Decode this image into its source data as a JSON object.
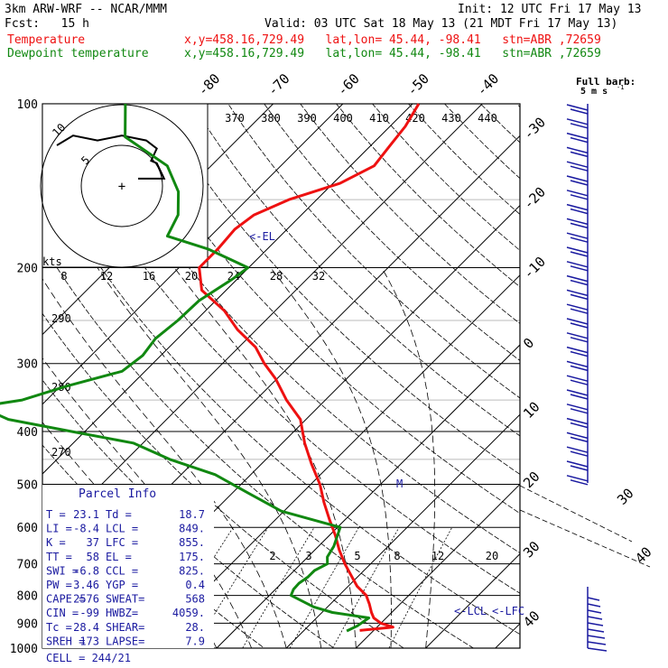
{
  "header": {
    "model_line": "3km ARW-WRF -- NCAR/MMM",
    "init_line": "Init: 12 UTC Fri 17 May 13",
    "fcst_line": "Fcst:   15 h",
    "valid_line": "Valid: 03 UTC Sat 18 May 13 (21 MDT Fri 17 May 13)",
    "temp_label": "Temperature",
    "temp_info": "x,y=458.16,729.49   lat,lon= 45.44, -98.41   stn=ABR ,72659",
    "dew_label": "Dewpoint temperature",
    "dew_info": "x,y=458.16,729.49   lat,lon= 45.44, -98.41   stn=ABR ,72659"
  },
  "colors": {
    "temperature": "#ee1111",
    "dewpoint": "#118811",
    "text": "#000000",
    "accent": "#1a1aa0",
    "wind_barb": "#1a1aa0"
  },
  "wind_key": {
    "line1": "Full barb:",
    "line2": "5 m s",
    "exp": "-1"
  },
  "hodograph": {
    "kts_label": "kts",
    "ring_labels": [
      "5",
      "10"
    ],
    "speed_ticks": [
      "8",
      "12",
      "16",
      "20",
      "24",
      "28",
      "32"
    ],
    "path_u": [
      -8,
      -6,
      -3,
      0,
      3,
      4.3,
      3.6,
      4.3,
      5.2,
      4.2,
      2
    ],
    "path_v": [
      5,
      6.2,
      5.6,
      6.2,
      5.6,
      4.6,
      3.1,
      2.8,
      0.9,
      0.9,
      0.9
    ]
  },
  "theta_labels": [
    "370",
    "380",
    "390",
    "400",
    "410",
    "420",
    "430",
    "440"
  ],
  "theta_left_labels": [
    "290",
    "280",
    "270"
  ],
  "mixing_labels": [
    "2",
    "3",
    "5",
    "8",
    "12",
    "20"
  ],
  "markers": {
    "el": "<-EL",
    "lcl": "<-LCL",
    "lfc": "<-LFC",
    "m": "M"
  },
  "parcel_info": {
    "title": "Parcel Info",
    "rows": [
      [
        "T  =",
        "23.1",
        "Td =",
        "18.7"
      ],
      [
        "LI =",
        "-8.4",
        "LCL =",
        "849."
      ],
      [
        "K  =",
        "37",
        "LFC =",
        "855."
      ],
      [
        "TT =",
        "58",
        "EL =",
        "175."
      ],
      [
        "SWI =",
        "-6.8",
        "CCL =",
        "825."
      ],
      [
        "PW =",
        "3.46",
        "YGP =",
        "0.4"
      ],
      [
        "CAPE =",
        "2576",
        "SWEAT=",
        "568"
      ],
      [
        "CIN =",
        "-99",
        "HWBZ=",
        "4059."
      ],
      [
        "Tc =",
        "28.4",
        "SHEAR=",
        "28."
      ],
      [
        "SREH =",
        "173",
        "LAPSE=",
        "7.9"
      ]
    ],
    "cell": "CELL = 244/21"
  },
  "chart_data": {
    "type": "line",
    "title": "",
    "xlabel": "",
    "ylabel": "",
    "y_scale": "log-pressure (hPa)",
    "pressure_ticks": [
      100,
      200,
      300,
      400,
      500,
      600,
      700,
      800,
      900,
      1000
    ],
    "ylim": [
      1000,
      100
    ],
    "temperature_ticks": [
      -80,
      -70,
      -60,
      -50,
      -40,
      -30,
      -20,
      -10,
      0,
      10,
      20,
      30,
      40
    ],
    "series": [
      {
        "name": "Temperature",
        "pressure": [
          928,
          915,
          900,
          880,
          860,
          830,
          800,
          770,
          740,
          700,
          660,
          620,
          580,
          540,
          500,
          460,
          420,
          380,
          350,
          320,
          300,
          280,
          260,
          240,
          220,
          200,
          185,
          170,
          160,
          150,
          140,
          130,
          120,
          110,
          100
        ],
        "temperature": [
          18.0,
          22.3,
          20.0,
          18.2,
          17.1,
          15.6,
          13.9,
          11.3,
          9.2,
          6.3,
          3.5,
          0.8,
          -2.3,
          -5.5,
          -8.7,
          -12.7,
          -16.8,
          -20.8,
          -25.6,
          -30.2,
          -34.0,
          -37.6,
          -42.7,
          -47.3,
          -53.5,
          -57.1,
          -57.1,
          -57.5,
          -56.8,
          -54.0,
          -49.0,
          -46.6,
          -47.2,
          -47.8,
          -49.1
        ]
      },
      {
        "name": "Dewpoint temperature",
        "pressure": [
          930,
          910,
          880,
          860,
          840,
          800,
          780,
          760,
          740,
          720,
          700,
          680,
          650,
          600,
          560,
          520,
          480,
          450,
          420,
          400,
          380,
          360,
          350,
          330,
          310,
          290,
          270,
          250,
          230,
          210,
          200,
          185,
          175,
          160,
          145,
          130,
          115,
          100
        ],
        "temperature": [
          16.2,
          17.0,
          17.5,
          11.5,
          8.0,
          3.1,
          2.6,
          2.5,
          2.9,
          2.9,
          3.8,
          2.8,
          2.2,
          0.4,
          -10.4,
          -17.5,
          -25.1,
          -33.8,
          -41.4,
          -51.9,
          -62.7,
          -68.7,
          -63.5,
          -59.1,
          -53.3,
          -52.6,
          -53.2,
          -52.6,
          -52.4,
          -50.7,
          -50.1,
          -58.4,
          -66.2,
          -67.7,
          -71.0,
          -76.3,
          -86.5,
          -91.2
        ]
      }
    ],
    "grid": true,
    "legend": "top-left"
  }
}
